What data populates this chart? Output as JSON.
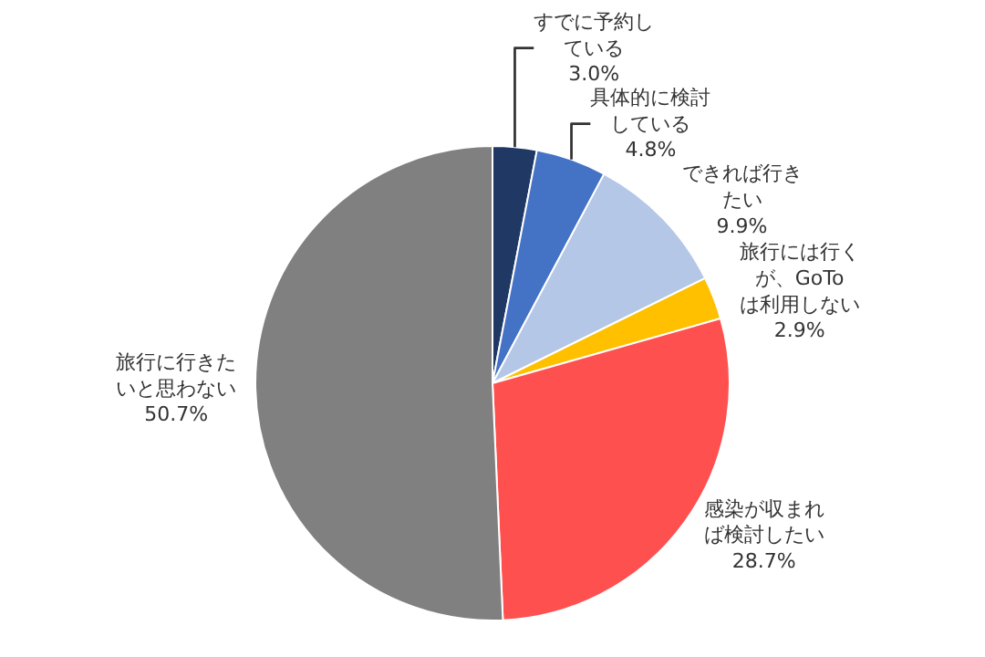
{
  "chart_data": {
    "type": "pie",
    "categories": [
      "すでに予約している",
      "具体的に検討している",
      "できれば行きたい",
      "旅行には行くが、GoToは利用しない",
      "感染が収まれば検討したい",
      "旅行に行きたいと思わない"
    ],
    "values": [
      3.0,
      4.8,
      9.9,
      2.9,
      28.7,
      50.7
    ],
    "value_labels": [
      "3.0%",
      "4.8%",
      "9.9%",
      "2.9%",
      "28.7%",
      "50.7%"
    ],
    "colors": [
      "#1f3864",
      "#4472c4",
      "#b4c7e7",
      "#ffc000",
      "#ff5050",
      "#808080"
    ],
    "legend": false
  }
}
